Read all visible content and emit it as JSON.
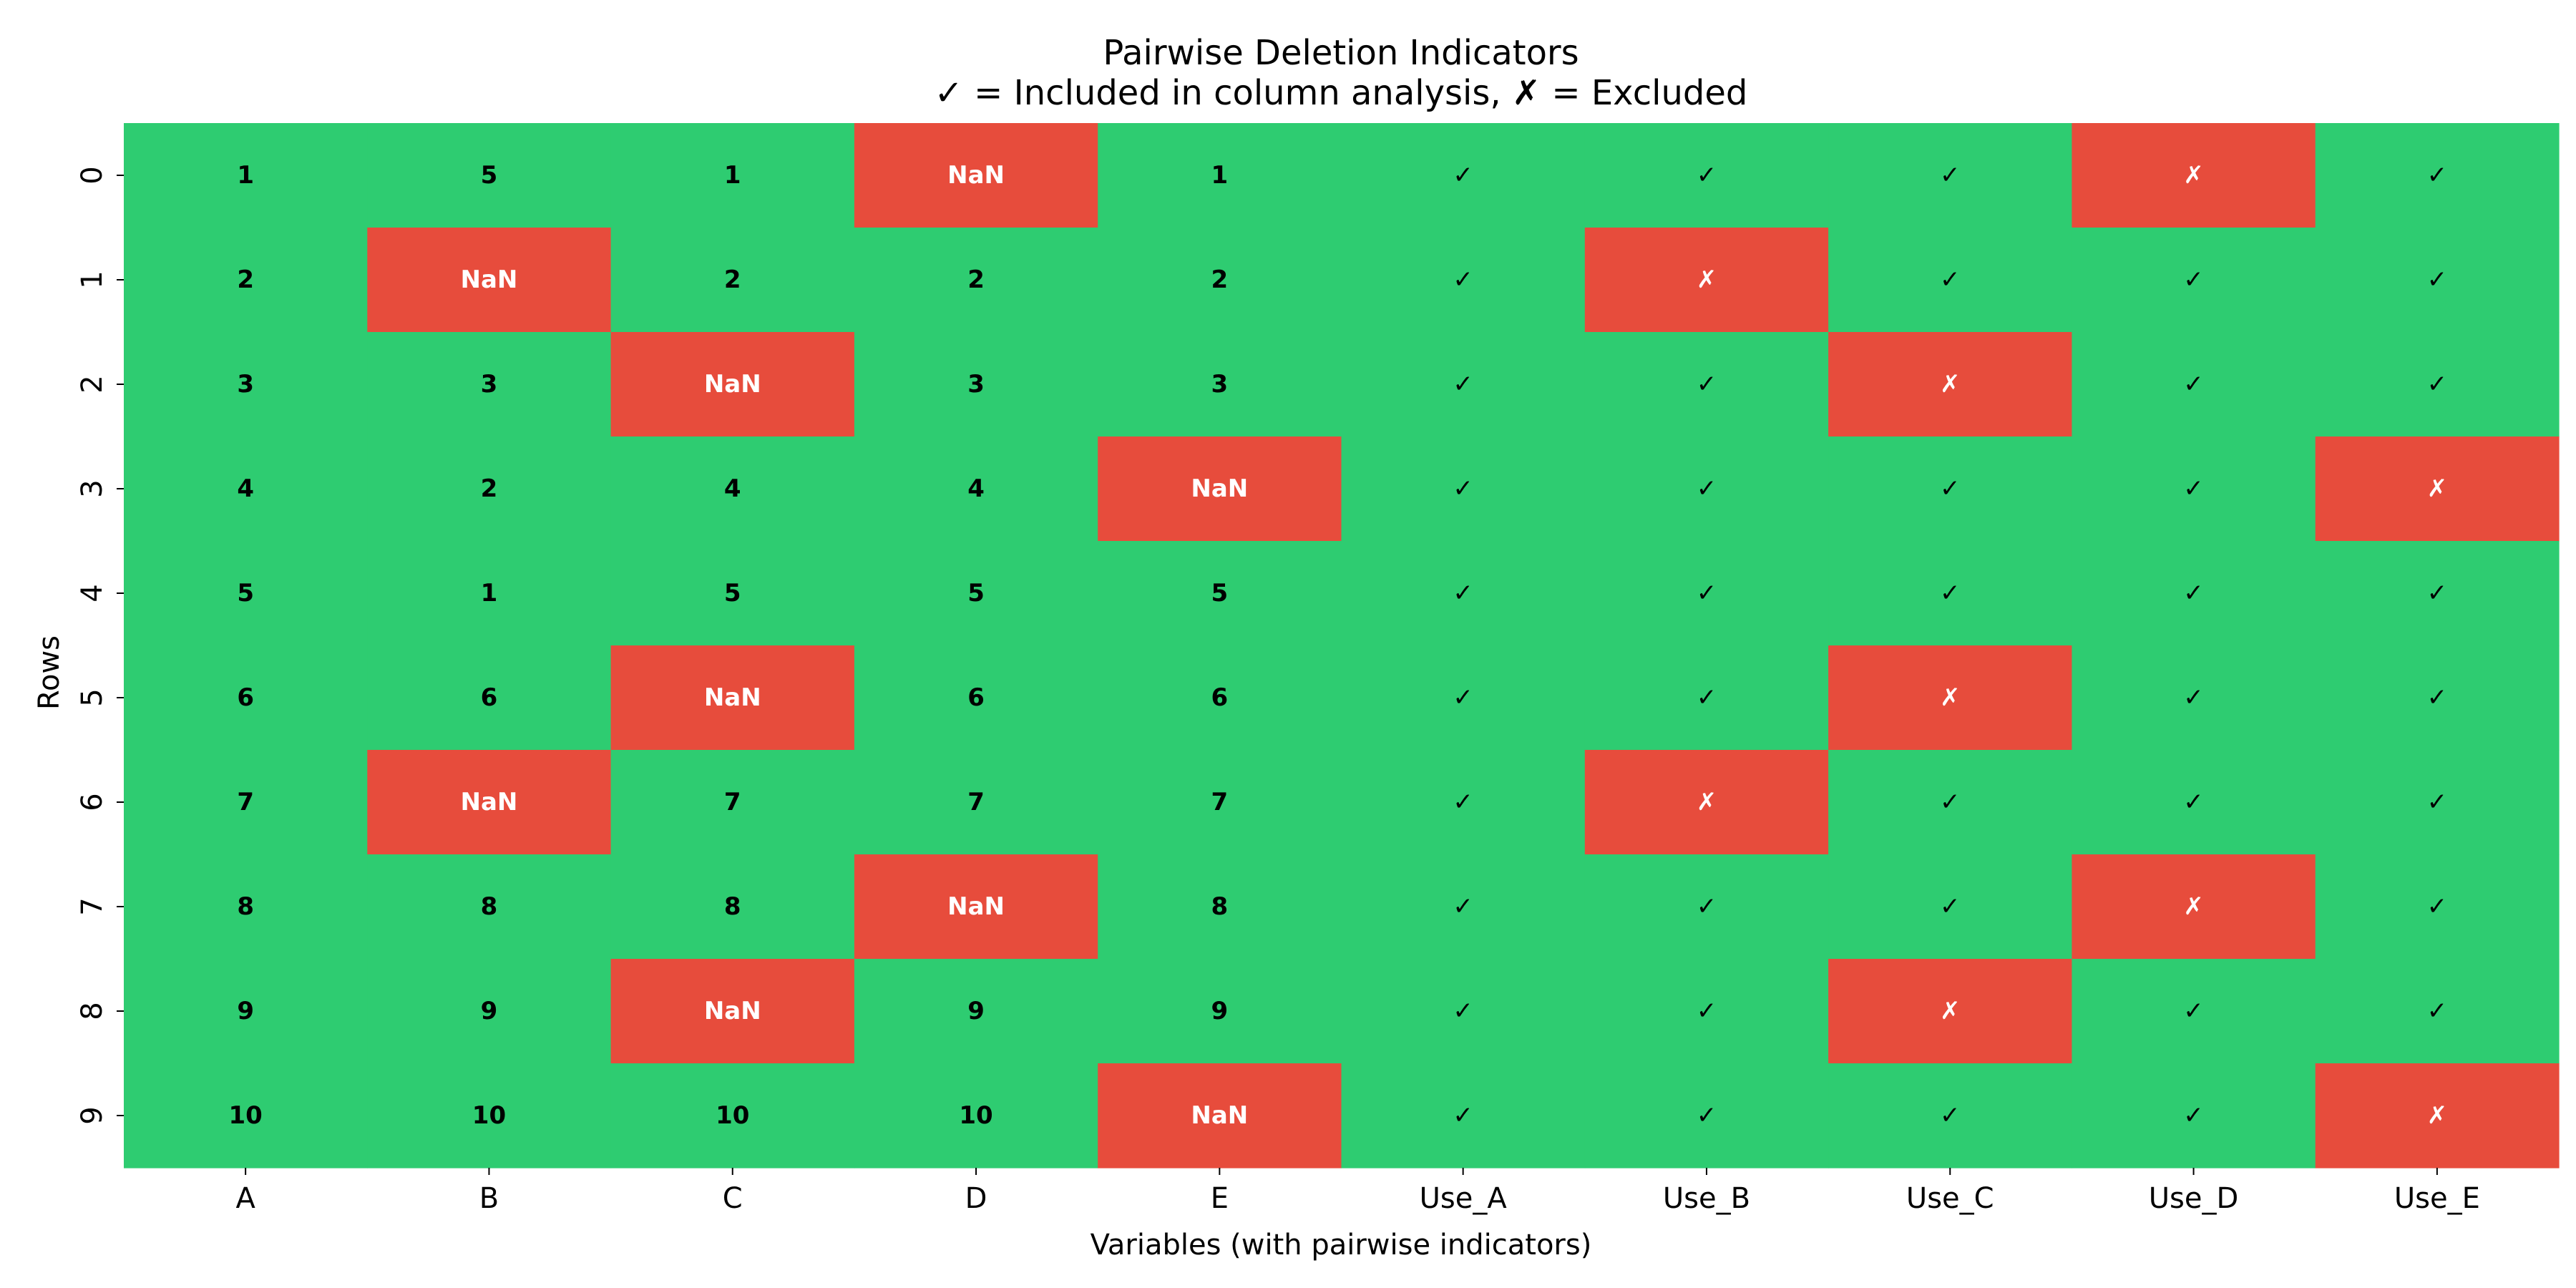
{
  "chart_data": {
    "type": "heatmap",
    "title_line1": "Pairwise Deletion Indicators",
    "title_line2": "✓ = Included in column analysis, ✗ = Excluded",
    "xlabel": "Variables (with pairwise indicators)",
    "ylabel": "Rows",
    "columns": [
      "A",
      "B",
      "C",
      "D",
      "E",
      "Use_A",
      "Use_B",
      "Use_C",
      "Use_D",
      "Use_E"
    ],
    "rows": [
      "0",
      "1",
      "2",
      "3",
      "4",
      "5",
      "6",
      "7",
      "8",
      "9"
    ],
    "cells": [
      [
        "1",
        "5",
        "1",
        "NaN",
        "1",
        "✓",
        "✓",
        "✓",
        "✗",
        "✓"
      ],
      [
        "2",
        "NaN",
        "2",
        "2",
        "2",
        "✓",
        "✗",
        "✓",
        "✓",
        "✓"
      ],
      [
        "3",
        "3",
        "NaN",
        "3",
        "3",
        "✓",
        "✓",
        "✗",
        "✓",
        "✓"
      ],
      [
        "4",
        "2",
        "4",
        "4",
        "NaN",
        "✓",
        "✓",
        "✓",
        "✓",
        "✗"
      ],
      [
        "5",
        "1",
        "5",
        "5",
        "5",
        "✓",
        "✓",
        "✓",
        "✓",
        "✓"
      ],
      [
        "6",
        "6",
        "NaN",
        "6",
        "6",
        "✓",
        "✓",
        "✗",
        "✓",
        "✓"
      ],
      [
        "7",
        "NaN",
        "7",
        "7",
        "7",
        "✓",
        "✗",
        "✓",
        "✓",
        "✓"
      ],
      [
        "8",
        "8",
        "8",
        "NaN",
        "8",
        "✓",
        "✓",
        "✓",
        "✗",
        "✓"
      ],
      [
        "9",
        "9",
        "NaN",
        "9",
        "9",
        "✓",
        "✓",
        "✗",
        "✓",
        "✓"
      ],
      [
        "10",
        "10",
        "10",
        "10",
        "NaN",
        "✓",
        "✓",
        "✓",
        "✓",
        "✗"
      ]
    ],
    "colors": {
      "included": "#2ecc71",
      "excluded": "#e74c3c",
      "text_on_included": "#000000",
      "text_on_excluded": "#ffffff"
    },
    "grid": false,
    "legend": "none"
  }
}
